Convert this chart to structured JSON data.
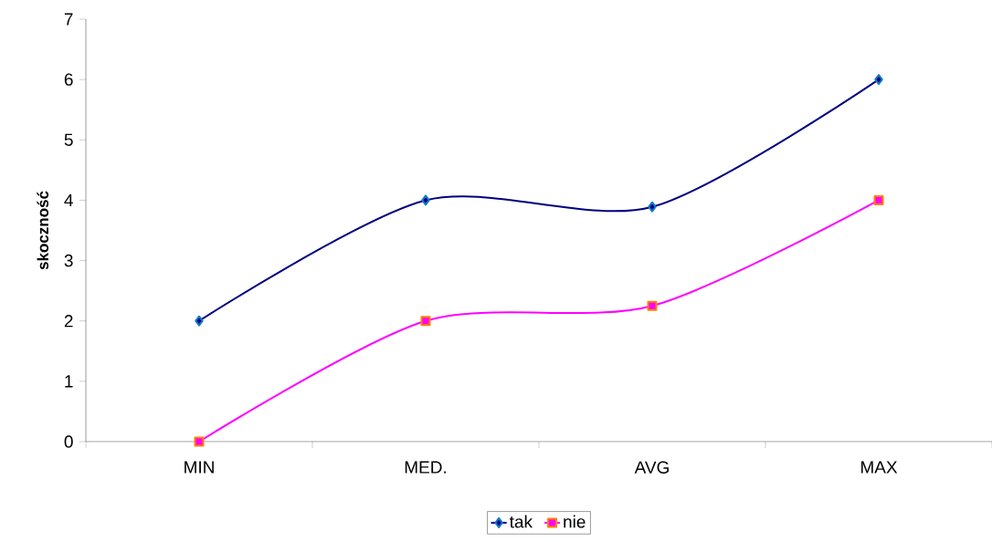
{
  "chart_data": {
    "type": "line",
    "ylabel": "skoczność",
    "categories": [
      "MIN",
      "MED.",
      "AVG",
      "MAX"
    ],
    "series": [
      {
        "name": "tak",
        "color": "#000080",
        "marker": "diamond",
        "values": [
          2,
          4,
          3.89,
          6
        ]
      },
      {
        "name": "nie",
        "color": "#ff00ff",
        "marker": "square",
        "values": [
          0,
          2,
          2.25,
          4
        ]
      }
    ],
    "ylim": [
      0,
      7
    ],
    "yticks": [
      0,
      1,
      2,
      3,
      4,
      5,
      6,
      7
    ],
    "legend": "bottom",
    "line_style": "solid"
  }
}
